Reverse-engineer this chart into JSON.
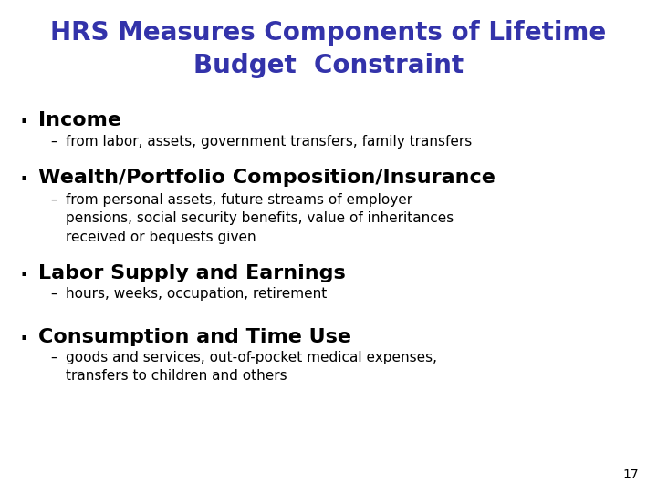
{
  "title_line1": "HRS Measures Components of Lifetime",
  "title_line2": "Budget  Constraint",
  "title_color": "#3333AA",
  "title_fontsize": 20,
  "background_color": "#FFFFFF",
  "bullet_color": "#000000",
  "bullet_header_fontsize": 16,
  "sub_fontsize": 11,
  "page_number": "17",
  "items": [
    {
      "bullet": "Income",
      "sub": "from labor, assets, government transfers, family transfers"
    },
    {
      "bullet": "Wealth/Portfolio Composition/Insurance",
      "sub": "from personal assets, future streams of employer\npensions, social security benefits, value of inheritances\nreceived or bequests given"
    },
    {
      "bullet": "Labor Supply and Earnings",
      "sub": "hours, weeks, occupation, retirement"
    },
    {
      "bullet": "Consumption and Time Use",
      "sub": "goods and services, out-of-pocket medical expenses,\ntransfers to children and others"
    }
  ]
}
